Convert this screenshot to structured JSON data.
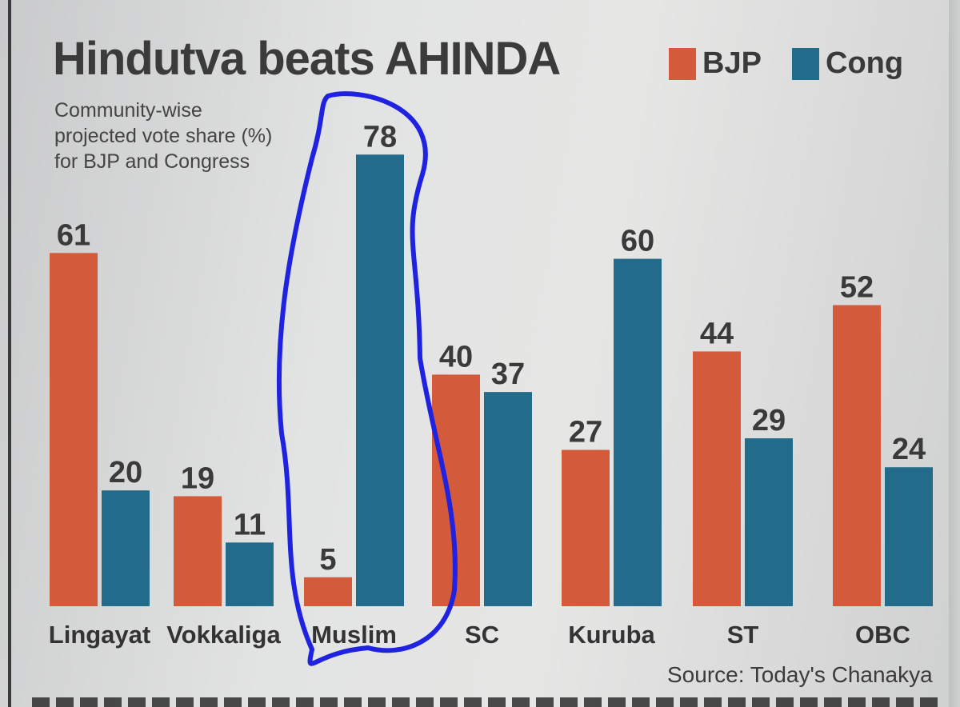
{
  "chart_data": {
    "type": "bar",
    "title": "Hindutva beats AHINDA",
    "subtitle": "Community-wise\nprojected vote share (%)\nfor BJP and Congress",
    "categories": [
      "Lingayat",
      "Vokkaliga",
      "Muslim",
      "SC",
      "Kuruba",
      "ST",
      "OBC"
    ],
    "series": [
      {
        "name": "BJP",
        "color": "#d45a3c",
        "values": [
          61,
          19,
          5,
          40,
          27,
          44,
          52
        ]
      },
      {
        "name": "Cong",
        "color": "#236b8a",
        "values": [
          20,
          11,
          78,
          37,
          60,
          29,
          24
        ]
      }
    ],
    "ylim": [
      0,
      78
    ],
    "grid": false,
    "legend_position": "top-right",
    "source": "Source: Today's Chanakya",
    "annotation": {
      "type": "hand-drawn ellipse",
      "color": "#1f22e0",
      "highlights": "Muslim"
    }
  }
}
